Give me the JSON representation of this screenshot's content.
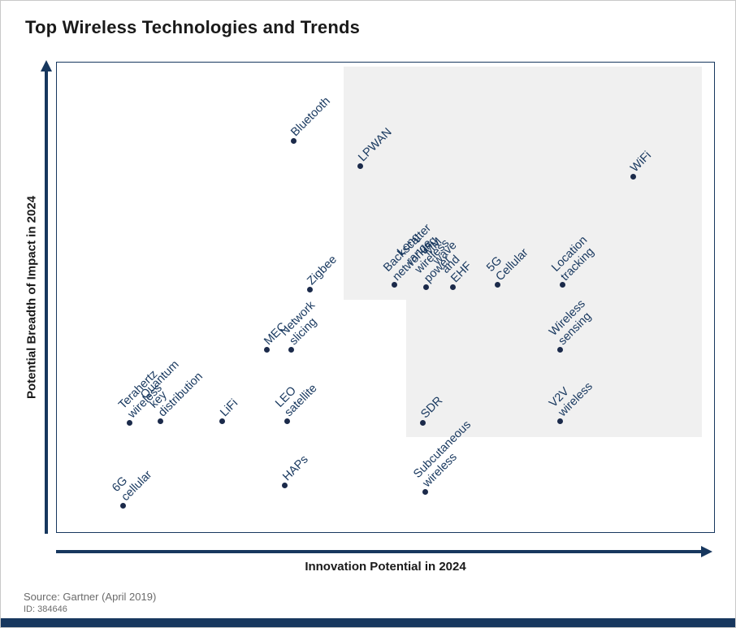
{
  "title": "Top Wireless Technologies and Trends",
  "axes": {
    "x_label": "Innovation Potential in 2024",
    "y_label": "Potential Breadth of Impact in 2024"
  },
  "footer": {
    "source": "Source: Gartner (April 2019)",
    "id": "ID: 384646"
  },
  "colors": {
    "navy": "#17375e",
    "dot": "#1b2a4a",
    "shade": "#f0f0f0",
    "bottom_bar": "#17375e"
  },
  "chart_data": {
    "type": "scatter",
    "title": "Top Wireless Technologies and Trends",
    "xlabel": "Innovation Potential in 2024",
    "ylabel": "Potential Breadth of Impact in 2024",
    "xlim": [
      0,
      100
    ],
    "ylim": [
      0,
      100
    ],
    "grid": false,
    "legend": "none",
    "axis_tick_labels": "none (conceptual axes with arrows)",
    "shaded_regions": [
      {
        "x0": 43.6,
        "x1": 98.2,
        "y0": 49.5,
        "y1": 99.2
      },
      {
        "x0": 53.2,
        "x1": 98.2,
        "y0": 20.3,
        "y1": 49.5
      }
    ],
    "points": [
      {
        "label": "Bluetooth",
        "x": 36.0,
        "y": 83.3
      },
      {
        "label": "LPWAN",
        "x": 46.2,
        "y": 77.9
      },
      {
        "label": "WiFi",
        "x": 87.7,
        "y": 75.7
      },
      {
        "label": "Zigbee",
        "x": 38.5,
        "y": 51.7
      },
      {
        "label": "Backscatter networking",
        "x": 51.4,
        "y": 52.6
      },
      {
        "label": "Long range wireless power",
        "x": 56.2,
        "y": 52.2
      },
      {
        "label": "MM wave and EHF",
        "x": 60.3,
        "y": 52.2
      },
      {
        "label": "5G Cellular",
        "x": 67.1,
        "y": 52.6
      },
      {
        "label": "Location tracking",
        "x": 77.0,
        "y": 52.6
      },
      {
        "label": "MEC",
        "x": 31.9,
        "y": 38.8
      },
      {
        "label": "Network\nslicing",
        "x": 35.7,
        "y": 38.8
      },
      {
        "label": "Wireless sensing",
        "x": 76.6,
        "y": 38.8
      },
      {
        "label": "Terahertz wireless",
        "x": 11.1,
        "y": 23.3
      },
      {
        "label": "Quantum key distribution",
        "x": 15.8,
        "y": 23.6
      },
      {
        "label": "LiFi",
        "x": 25.2,
        "y": 23.6
      },
      {
        "label": "LEO satellite",
        "x": 35.0,
        "y": 23.6
      },
      {
        "label": "SDR",
        "x": 55.7,
        "y": 23.3
      },
      {
        "label": "V2V wireless",
        "x": 76.6,
        "y": 23.6
      },
      {
        "label": "Subcutaneous\nwireless",
        "x": 56.0,
        "y": 8.6
      },
      {
        "label": "HAPs",
        "x": 34.7,
        "y": 10.0
      },
      {
        "label": "6G cellular",
        "x": 10.1,
        "y": 5.7
      }
    ]
  }
}
